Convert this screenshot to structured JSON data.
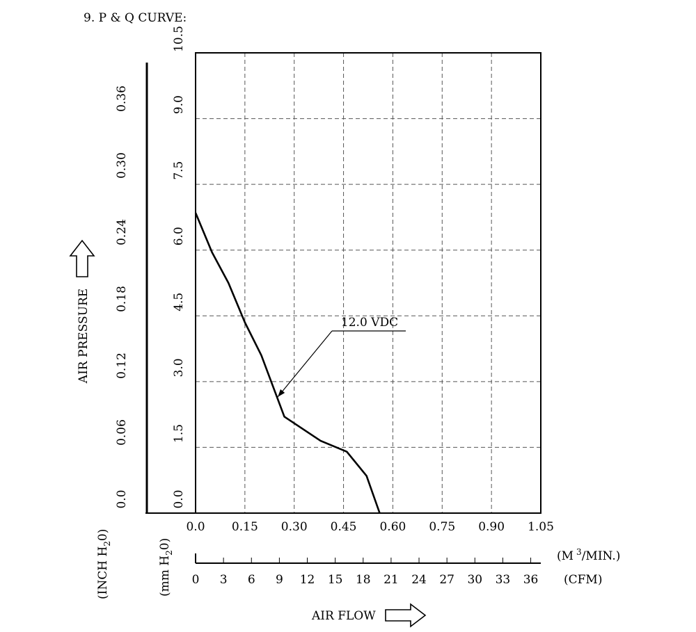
{
  "section_title": "9. P & Q CURVE:",
  "chart_data": {
    "type": "line",
    "title": "9. P & Q CURVE:",
    "xlabel": "AIR FLOW",
    "ylabel": "AIR PRESSURE",
    "x_unit_primary": "(M",
    "x_unit_primary_sup": "3",
    "x_unit_primary_tail": "/MIN.)",
    "x_unit_secondary": "(CFM)",
    "y_unit_primary_pre": "(mm H",
    "y_unit_primary_sub": "2",
    "y_unit_primary_post": "0)",
    "y_unit_secondary_pre": "(INCH H",
    "y_unit_secondary_sub": "2",
    "y_unit_secondary_post": "0)",
    "xlim": [
      0,
      1.05
    ],
    "ylim": [
      0,
      10.5
    ],
    "grid": true,
    "x_ticks": [
      "0.0",
      "0.15",
      "0.30",
      "0.45",
      "0.60",
      "0.75",
      "0.90",
      "1.05"
    ],
    "x_tick_values": [
      0,
      0.15,
      0.3,
      0.45,
      0.6,
      0.75,
      0.9,
      1.05
    ],
    "y_ticks": [
      "0.0",
      "1.5",
      "3.0",
      "4.5",
      "6.0",
      "7.5",
      "9.0",
      "10.5"
    ],
    "y_tick_values": [
      0,
      1.5,
      3.0,
      4.5,
      6.0,
      7.5,
      9.0,
      10.5
    ],
    "cfm_ticks": [
      "0",
      "3",
      "6",
      "9",
      "12",
      "15",
      "18",
      "21",
      "24",
      "27",
      "30",
      "33",
      "36"
    ],
    "cfm_tick_values": [
      0,
      3,
      6,
      9,
      12,
      15,
      18,
      21,
      24,
      27,
      30,
      33,
      36
    ],
    "inch_ticks": [
      "0.0",
      "0.06",
      "0.12",
      "0.18",
      "0.24",
      "0.30",
      "0.36"
    ],
    "inch_tick_values": [
      0,
      0.06,
      0.12,
      0.18,
      0.24,
      0.3,
      0.36
    ],
    "series": [
      {
        "name": "12.0 VDC",
        "x": [
          0.0,
          0.05,
          0.1,
          0.15,
          0.2,
          0.27,
          0.32,
          0.38,
          0.46,
          0.52,
          0.56
        ],
        "y": [
          6.85,
          5.95,
          5.25,
          4.35,
          3.6,
          2.2,
          1.95,
          1.65,
          1.4,
          0.85,
          0.0
        ]
      }
    ],
    "annotations": [
      {
        "text": "12.0 VDC",
        "points_to": {
          "x": 0.25,
          "y": 2.65
        }
      }
    ]
  }
}
